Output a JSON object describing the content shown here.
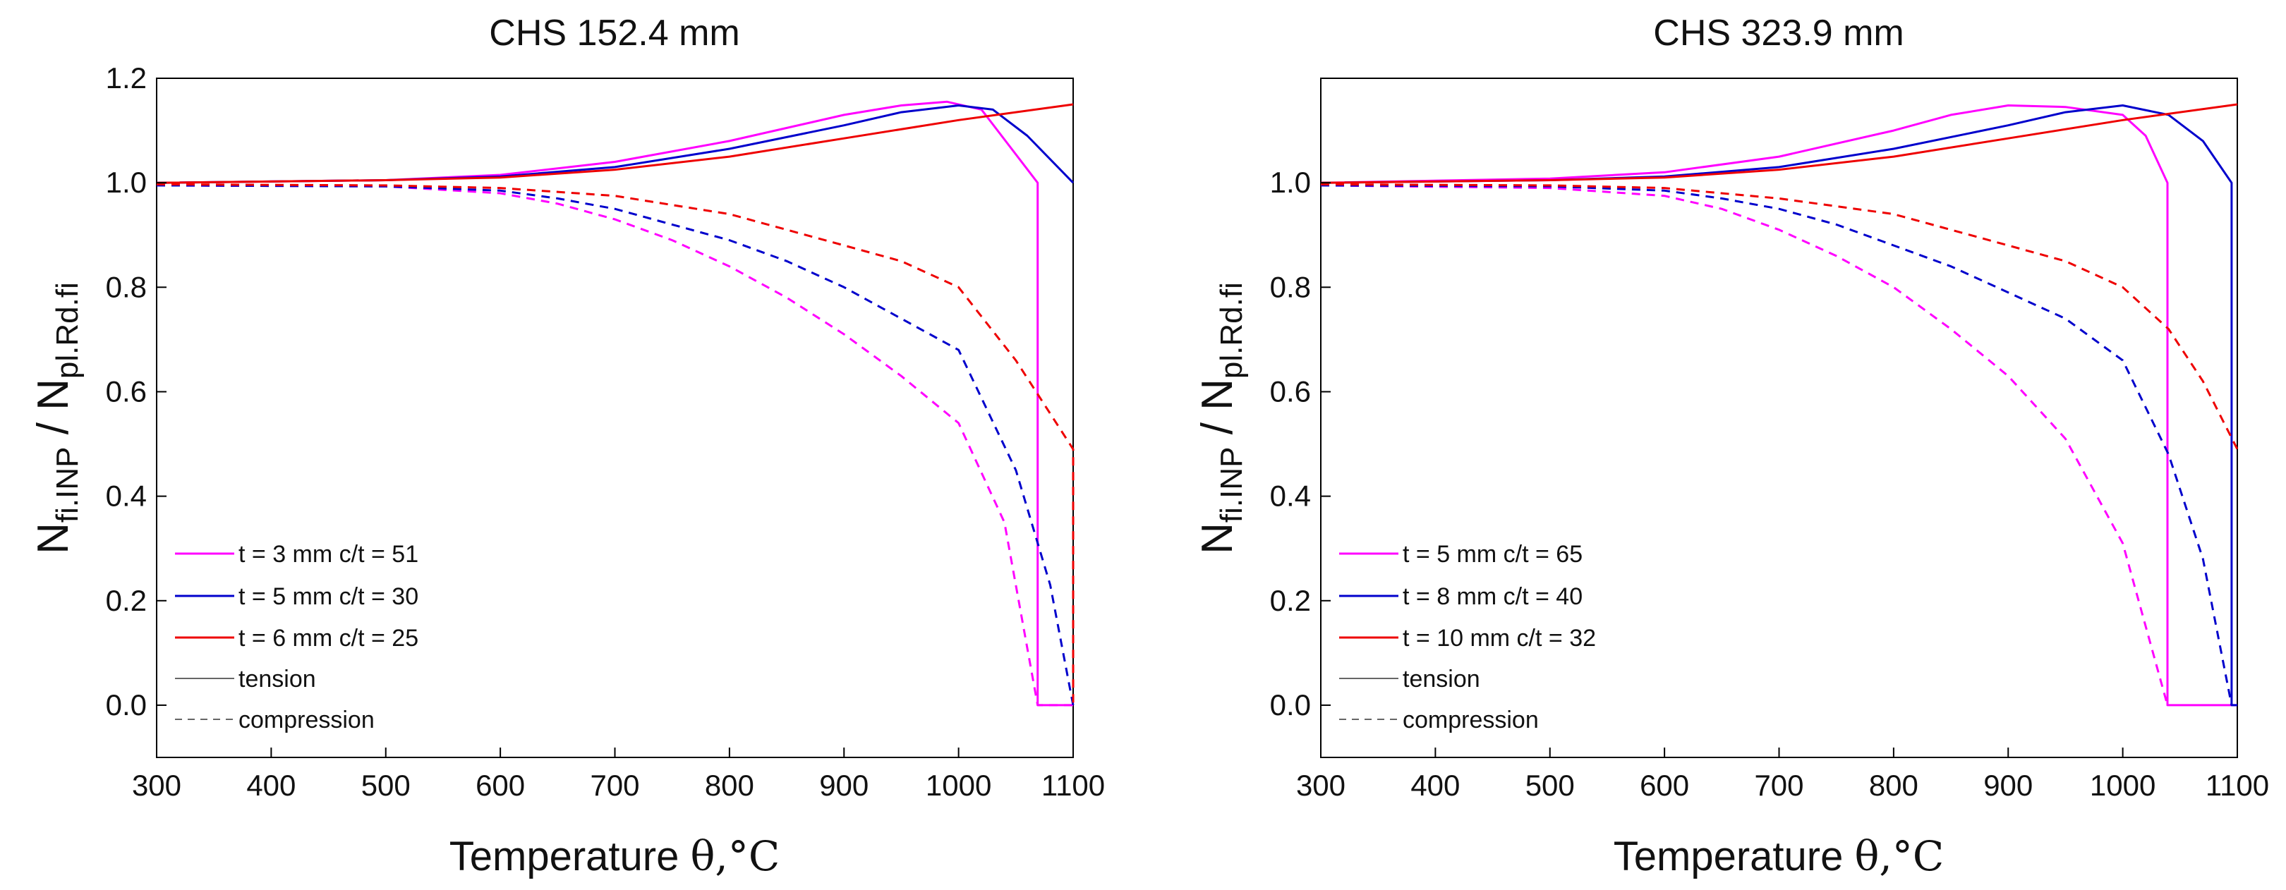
{
  "colors": {
    "magenta": "#ff00ff",
    "blue": "#0000cc",
    "red": "#ee0000",
    "axis": "#000000",
    "legend_gray": "#666666"
  },
  "chart_data": [
    {
      "type": "line",
      "title": "CHS 152.4 mm",
      "xlabel": "Temperature",
      "xlabel_symbol": "θ,°C",
      "ylabel": {
        "main": "N",
        "sub1": "fi.INP",
        "sep": " / N",
        "sub2": "pl.Rd.fi"
      },
      "xlim": [
        300,
        1100
      ],
      "ylim": [
        -0.1,
        1.2
      ],
      "xticks": [
        "300",
        "400",
        "500",
        "600",
        "700",
        "800",
        "900",
        "1000",
        "1100"
      ],
      "yticks": [
        "0.0",
        "0.2",
        "0.4",
        "0.6",
        "0.8",
        "1.0",
        "1.2"
      ],
      "legend": [
        "t = 3 mm c/t = 51",
        "t = 5 mm c/t = 30",
        "t = 6 mm c/t = 25",
        "tension",
        "compression"
      ],
      "series": [
        {
          "name": "t = 3 mm c/t = 51",
          "mode": "tension",
          "color": "magenta",
          "x": [
            300,
            500,
            600,
            700,
            800,
            900,
            950,
            990,
            1020,
            1069,
            1069,
            1100
          ],
          "y": [
            1.0,
            1.005,
            1.015,
            1.04,
            1.08,
            1.13,
            1.148,
            1.155,
            1.14,
            1.0,
            0.0,
            0.0
          ]
        },
        {
          "name": "t = 5 mm c/t = 30",
          "mode": "tension",
          "color": "blue",
          "x": [
            300,
            500,
            600,
            700,
            800,
            900,
            950,
            1000,
            1030,
            1060,
            1100
          ],
          "y": [
            1.0,
            1.005,
            1.012,
            1.03,
            1.065,
            1.11,
            1.135,
            1.148,
            1.14,
            1.09,
            1.0
          ]
        },
        {
          "name": "t = 6 mm c/t = 25",
          "mode": "tension",
          "color": "red",
          "x": [
            300,
            500,
            600,
            700,
            800,
            900,
            1000,
            1100
          ],
          "y": [
            1.0,
            1.005,
            1.01,
            1.025,
            1.05,
            1.085,
            1.12,
            1.15
          ]
        },
        {
          "name": "t = 3 mm c/t = 51",
          "mode": "compression",
          "color": "magenta",
          "x": [
            300,
            500,
            600,
            650,
            700,
            750,
            800,
            850,
            900,
            950,
            1000,
            1040,
            1069,
            1100
          ],
          "y": [
            0.995,
            0.993,
            0.98,
            0.96,
            0.93,
            0.89,
            0.84,
            0.78,
            0.71,
            0.63,
            0.54,
            0.35,
            0.0,
            0.0
          ]
        },
        {
          "name": "t = 5 mm c/t = 30",
          "mode": "compression",
          "color": "blue",
          "x": [
            300,
            500,
            600,
            650,
            700,
            750,
            800,
            850,
            900,
            950,
            1000,
            1050,
            1080,
            1100
          ],
          "y": [
            0.995,
            0.993,
            0.985,
            0.97,
            0.95,
            0.92,
            0.89,
            0.85,
            0.8,
            0.74,
            0.68,
            0.45,
            0.23,
            0.0
          ]
        },
        {
          "name": "t = 6 mm c/t = 25",
          "mode": "compression",
          "color": "red",
          "x": [
            300,
            500,
            600,
            700,
            800,
            850,
            900,
            950,
            1000,
            1050,
            1100,
            1100
          ],
          "y": [
            0.997,
            0.995,
            0.99,
            0.975,
            0.94,
            0.91,
            0.88,
            0.85,
            0.8,
            0.66,
            0.49,
            0.0
          ]
        }
      ]
    },
    {
      "type": "line",
      "title": "CHS 323.9 mm",
      "xlabel": "Temperature",
      "xlabel_symbol": "θ,°C",
      "ylabel": {
        "main": "N",
        "sub1": "fi.INP",
        "sep": " / N",
        "sub2": "pl.Rd.fi"
      },
      "xlim": [
        300,
        1100
      ],
      "ylim": [
        -0.1,
        1.2
      ],
      "xticks": [
        "300",
        "400",
        "500",
        "600",
        "700",
        "800",
        "900",
        "1000",
        "1100"
      ],
      "yticks": [
        "0.0",
        "0.2",
        "0.4",
        "0.6",
        "0.8",
        "1.0"
      ],
      "legend": [
        "t = 5 mm c/t = 65",
        "t = 8 mm c/t = 40",
        "t = 10 mm c/t = 32",
        "tension",
        "compression"
      ],
      "series": [
        {
          "name": "t = 5 mm c/t = 65",
          "mode": "tension",
          "color": "magenta",
          "x": [
            300,
            500,
            600,
            700,
            800,
            850,
            900,
            950,
            1000,
            1020,
            1039,
            1039,
            1100
          ],
          "y": [
            1.0,
            1.008,
            1.02,
            1.05,
            1.1,
            1.13,
            1.148,
            1.145,
            1.13,
            1.09,
            1.0,
            0.0,
            0.0
          ]
        },
        {
          "name": "t = 8 mm c/t = 40",
          "mode": "tension",
          "color": "blue",
          "x": [
            300,
            500,
            600,
            700,
            800,
            900,
            950,
            1000,
            1040,
            1070,
            1095,
            1095,
            1100
          ],
          "y": [
            1.0,
            1.005,
            1.012,
            1.03,
            1.065,
            1.11,
            1.135,
            1.148,
            1.13,
            1.08,
            1.0,
            0.0,
            0.0
          ]
        },
        {
          "name": "t = 10 mm c/t = 32",
          "mode": "tension",
          "color": "red",
          "x": [
            300,
            500,
            600,
            700,
            800,
            900,
            1000,
            1100
          ],
          "y": [
            1.0,
            1.005,
            1.01,
            1.025,
            1.05,
            1.085,
            1.12,
            1.15
          ]
        },
        {
          "name": "t = 5 mm c/t = 65",
          "mode": "compression",
          "color": "magenta",
          "x": [
            300,
            500,
            600,
            650,
            700,
            750,
            800,
            850,
            900,
            950,
            1000,
            1039
          ],
          "y": [
            0.995,
            0.99,
            0.975,
            0.95,
            0.91,
            0.86,
            0.8,
            0.72,
            0.63,
            0.51,
            0.31,
            0.0
          ]
        },
        {
          "name": "t = 8 mm c/t = 40",
          "mode": "compression",
          "color": "blue",
          "x": [
            300,
            500,
            600,
            650,
            700,
            750,
            800,
            850,
            900,
            950,
            1000,
            1040,
            1070,
            1095
          ],
          "y": [
            0.995,
            0.993,
            0.985,
            0.97,
            0.95,
            0.92,
            0.88,
            0.84,
            0.79,
            0.74,
            0.66,
            0.48,
            0.28,
            0.0
          ]
        },
        {
          "name": "t = 10 mm c/t = 32",
          "mode": "compression",
          "color": "red",
          "x": [
            300,
            500,
            600,
            700,
            800,
            850,
            900,
            950,
            1000,
            1040,
            1070,
            1100
          ],
          "y": [
            0.997,
            0.995,
            0.99,
            0.97,
            0.94,
            0.91,
            0.88,
            0.85,
            0.8,
            0.72,
            0.62,
            0.49
          ]
        }
      ]
    }
  ]
}
